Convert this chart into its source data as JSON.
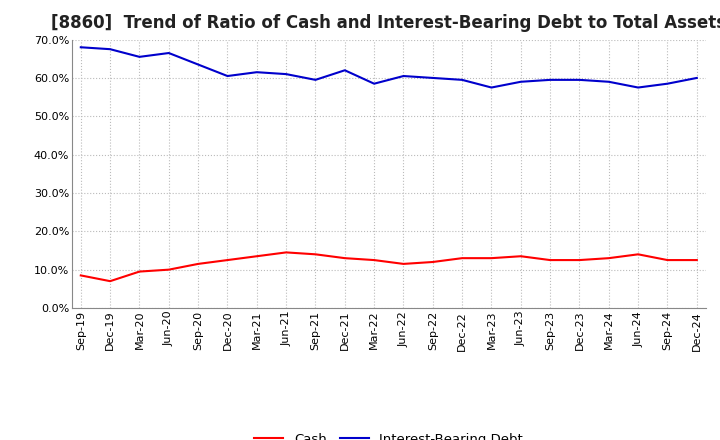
{
  "title": "[8860]  Trend of Ratio of Cash and Interest-Bearing Debt to Total Assets",
  "labels": [
    "Sep-19",
    "Dec-19",
    "Mar-20",
    "Jun-20",
    "Sep-20",
    "Dec-20",
    "Mar-21",
    "Jun-21",
    "Sep-21",
    "Dec-21",
    "Mar-22",
    "Jun-22",
    "Sep-22",
    "Dec-22",
    "Mar-23",
    "Jun-23",
    "Sep-23",
    "Dec-23",
    "Mar-24",
    "Jun-24",
    "Sep-24",
    "Dec-24"
  ],
  "cash": [
    8.5,
    7.0,
    9.5,
    10.0,
    11.5,
    12.5,
    13.5,
    14.5,
    14.0,
    13.0,
    12.5,
    11.5,
    12.0,
    13.0,
    13.0,
    13.5,
    12.5,
    12.5,
    13.0,
    14.0,
    12.5,
    12.5
  ],
  "interest_bearing_debt": [
    68.0,
    67.5,
    65.5,
    66.5,
    63.5,
    60.5,
    61.5,
    61.0,
    59.5,
    62.0,
    58.5,
    60.5,
    60.0,
    59.5,
    57.5,
    59.0,
    59.5,
    59.5,
    59.0,
    57.5,
    58.5,
    60.0
  ],
  "cash_color": "#ff0000",
  "debt_color": "#0000cc",
  "background_color": "#ffffff",
  "plot_bg_color": "#ffffff",
  "grid_color": "#bbbbbb",
  "ylim": [
    0,
    70
  ],
  "yticks": [
    0,
    10,
    20,
    30,
    40,
    50,
    60,
    70
  ],
  "legend_cash": "Cash",
  "legend_debt": "Interest-Bearing Debt",
  "title_fontsize": 12,
  "tick_fontsize": 8,
  "legend_fontsize": 9.5
}
